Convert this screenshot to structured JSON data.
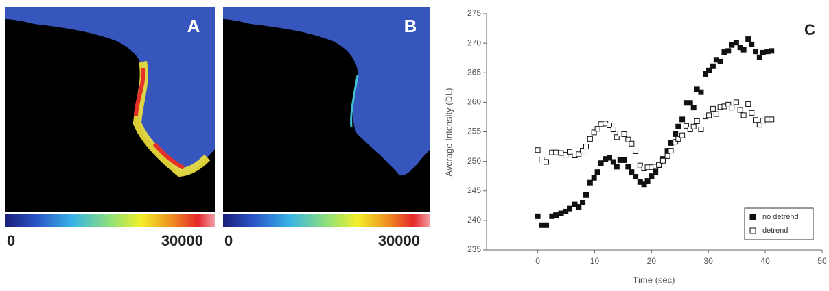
{
  "panels": [
    {
      "label": "A",
      "colorbar": {
        "min": 0,
        "max": 30000
      }
    },
    {
      "label": "B",
      "colorbar": {
        "min": 0,
        "max": 30000
      }
    }
  ],
  "chart_data": {
    "type": "scatter",
    "annotation": "C",
    "x_label": "Time (sec)",
    "y_label": "Average Intensity (DL)",
    "xlim": [
      -9,
      50
    ],
    "xticks": [
      0,
      10,
      20,
      30,
      40,
      50
    ],
    "ylim": [
      235,
      275
    ],
    "yticks": [
      235,
      240,
      245,
      250,
      255,
      260,
      265,
      270,
      275
    ],
    "legend": "lower right",
    "x": [
      0,
      0.7,
      1.5,
      2.5,
      3.2,
      4.1,
      4.9,
      5.6,
      6.5,
      7.2,
      7.9,
      8.5,
      9.2,
      9.9,
      10.5,
      11.1,
      11.9,
      12.6,
      13.3,
      13.9,
      14.5,
      15.2,
      15.9,
      16.5,
      17.2,
      18,
      18.7,
      19.3,
      20,
      20.7,
      21.3,
      22,
      22.8,
      23.4,
      24.2,
      24.7,
      25.4,
      26.1,
      26.8,
      27.4,
      28,
      28.7,
      29.5,
      30.1,
      30.8,
      31.4,
      32.1,
      32.8,
      33.5,
      34.1,
      34.9,
      35.6,
      36.2,
      37,
      37.6,
      38.3,
      39,
      39.6,
      40.4,
      41.1
    ],
    "series": [
      {
        "name": "no detrend",
        "color": "#111111",
        "filled": true,
        "values": [
          240.7,
          239.2,
          239.2,
          240.7,
          240.9,
          241.2,
          241.5,
          242,
          242.7,
          242.3,
          243,
          244.3,
          246.4,
          247.2,
          248.2,
          249.7,
          250.4,
          250.6,
          249.9,
          249.1,
          250.2,
          250.2,
          249.1,
          248.2,
          247.4,
          246.5,
          246.1,
          246.7,
          247.5,
          248.2,
          249.3,
          250.4,
          251.8,
          253.1,
          254.6,
          255.9,
          257.1,
          259.9,
          259.9,
          259.1,
          262.2,
          261.7,
          264.8,
          265.4,
          266.1,
          267.2,
          266.9,
          268.5,
          268.7,
          269.7,
          270.1,
          269.3,
          268.9,
          270.7,
          269.8,
          268.6,
          267.6,
          268.4,
          268.6,
          268.7
        ]
      },
      {
        "name": "detrend",
        "color": "#111111",
        "filled": false,
        "values": [
          251.9,
          250.3,
          249.9,
          251.5,
          251.5,
          251.4,
          251.1,
          251.6,
          251,
          251.2,
          251.8,
          252.5,
          253.8,
          254.9,
          255.5,
          256.3,
          256.4,
          256.1,
          255.4,
          254.1,
          254.7,
          254.6,
          253.7,
          253,
          251.7,
          249.3,
          248.8,
          249,
          249,
          249.1,
          249.4,
          250.1,
          250.9,
          251.8,
          253.3,
          253.8,
          254.4,
          256,
          255.4,
          255.9,
          256.8,
          255.4,
          257.6,
          257.8,
          258.9,
          258,
          259.2,
          259.3,
          259.6,
          259.1,
          260,
          258.7,
          257.8,
          259.7,
          258.2,
          257,
          256.2,
          256.9,
          257.1,
          257.1
        ]
      }
    ]
  }
}
